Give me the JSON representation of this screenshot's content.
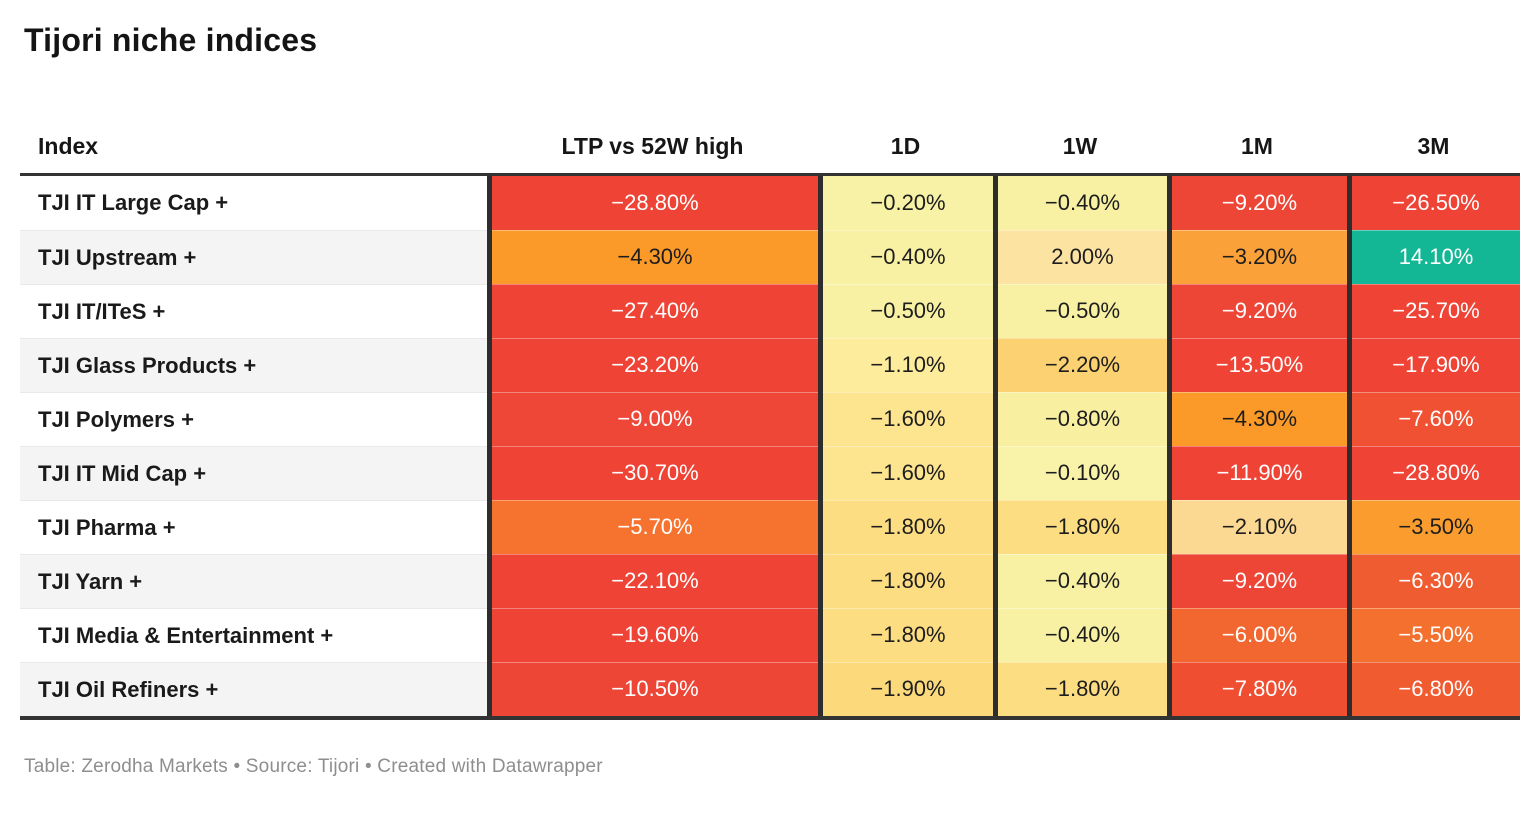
{
  "title": "Tijori niche indices",
  "footer": "Table: Zerodha Markets • Source: Tijori • Created with Datawrapper",
  "table": {
    "columns": [
      "Index",
      "LTP vs 52W high",
      "1D",
      "1W",
      "1M",
      "3M"
    ],
    "rows": [
      {
        "label": "TJI IT Large Cap +",
        "cells": [
          {
            "text": "−28.80%",
            "bg": "#ee4335",
            "fg": "#ffffff"
          },
          {
            "text": "−0.20%",
            "bg": "#f8f2a6",
            "fg": "#1d1d1d"
          },
          {
            "text": "−0.40%",
            "bg": "#f8f1a4",
            "fg": "#1d1d1d"
          },
          {
            "text": "−9.20%",
            "bg": "#ee4636",
            "fg": "#ffffff"
          },
          {
            "text": "−26.50%",
            "bg": "#ee4335",
            "fg": "#ffffff"
          }
        ]
      },
      {
        "label": "TJI Upstream +",
        "cells": [
          {
            "text": "−4.30%",
            "bg": "#fb9a28",
            "fg": "#1d1d1d"
          },
          {
            "text": "−0.40%",
            "bg": "#f8f1a4",
            "fg": "#1d1d1d"
          },
          {
            "text": "2.00%",
            "bg": "#fce3a2",
            "fg": "#1d1d1d"
          },
          {
            "text": "−3.20%",
            "bg": "#fba13a",
            "fg": "#1d1d1d"
          },
          {
            "text": "14.10%",
            "bg": "#14b795",
            "fg": "#ffffff"
          }
        ]
      },
      {
        "label": "TJI IT/ITeS +",
        "cells": [
          {
            "text": "−27.40%",
            "bg": "#ee4335",
            "fg": "#ffffff"
          },
          {
            "text": "−0.50%",
            "bg": "#f8f1a4",
            "fg": "#1d1d1d"
          },
          {
            "text": "−0.50%",
            "bg": "#f8f1a4",
            "fg": "#1d1d1d"
          },
          {
            "text": "−9.20%",
            "bg": "#ee4636",
            "fg": "#ffffff"
          },
          {
            "text": "−25.70%",
            "bg": "#ee4335",
            "fg": "#ffffff"
          }
        ]
      },
      {
        "label": "TJI Glass Products +",
        "cells": [
          {
            "text": "−23.20%",
            "bg": "#ee4335",
            "fg": "#ffffff"
          },
          {
            "text": "−1.10%",
            "bg": "#fdec9b",
            "fg": "#1d1d1d"
          },
          {
            "text": "−2.20%",
            "bg": "#fbd172",
            "fg": "#1d1d1d"
          },
          {
            "text": "−13.50%",
            "bg": "#ee4335",
            "fg": "#ffffff"
          },
          {
            "text": "−17.90%",
            "bg": "#ee4335",
            "fg": "#ffffff"
          }
        ]
      },
      {
        "label": "TJI Polymers +",
        "cells": [
          {
            "text": "−9.00%",
            "bg": "#ee4737",
            "fg": "#ffffff"
          },
          {
            "text": "−1.60%",
            "bg": "#fde48f",
            "fg": "#1d1d1d"
          },
          {
            "text": "−0.80%",
            "bg": "#f9efa0",
            "fg": "#1d1d1d"
          },
          {
            "text": "−4.30%",
            "bg": "#fb9a28",
            "fg": "#1d1d1d"
          },
          {
            "text": "−7.60%",
            "bg": "#f05132",
            "fg": "#ffffff"
          }
        ]
      },
      {
        "label": "TJI IT Mid Cap +",
        "cells": [
          {
            "text": "−30.70%",
            "bg": "#ee4335",
            "fg": "#ffffff"
          },
          {
            "text": "−1.60%",
            "bg": "#fde48f",
            "fg": "#1d1d1d"
          },
          {
            "text": "−0.10%",
            "bg": "#f9f3aa",
            "fg": "#1d1d1d"
          },
          {
            "text": "−11.90%",
            "bg": "#ee4335",
            "fg": "#ffffff"
          },
          {
            "text": "−28.80%",
            "bg": "#ee4335",
            "fg": "#ffffff"
          }
        ]
      },
      {
        "label": "TJI Pharma +",
        "cells": [
          {
            "text": "−5.70%",
            "bg": "#f6732f",
            "fg": "#ffffff"
          },
          {
            "text": "−1.80%",
            "bg": "#fcdd82",
            "fg": "#1d1d1d"
          },
          {
            "text": "−1.80%",
            "bg": "#fcdd82",
            "fg": "#1d1d1d"
          },
          {
            "text": "−2.10%",
            "bg": "#fbd993",
            "fg": "#1d1d1d"
          },
          {
            "text": "−3.50%",
            "bg": "#fa9d2e",
            "fg": "#1d1d1d"
          }
        ]
      },
      {
        "label": "TJI Yarn +",
        "cells": [
          {
            "text": "−22.10%",
            "bg": "#ee4335",
            "fg": "#ffffff"
          },
          {
            "text": "−1.80%",
            "bg": "#fcdd82",
            "fg": "#1d1d1d"
          },
          {
            "text": "−0.40%",
            "bg": "#f8f1a4",
            "fg": "#1d1d1d"
          },
          {
            "text": "−9.20%",
            "bg": "#ee4636",
            "fg": "#ffffff"
          },
          {
            "text": "−6.30%",
            "bg": "#f05c31",
            "fg": "#ffffff"
          }
        ]
      },
      {
        "label": "TJI Media & Entertainment +",
        "cells": [
          {
            "text": "−19.60%",
            "bg": "#ee4335",
            "fg": "#ffffff"
          },
          {
            "text": "−1.80%",
            "bg": "#fcdd82",
            "fg": "#1d1d1d"
          },
          {
            "text": "−0.40%",
            "bg": "#f8f1a4",
            "fg": "#1d1d1d"
          },
          {
            "text": "−6.00%",
            "bg": "#f2662f",
            "fg": "#ffffff"
          },
          {
            "text": "−5.50%",
            "bg": "#f4702e",
            "fg": "#ffffff"
          }
        ]
      },
      {
        "label": "TJI Oil Refiners +",
        "cells": [
          {
            "text": "−10.50%",
            "bg": "#ee4636",
            "fg": "#ffffff"
          },
          {
            "text": "−1.90%",
            "bg": "#fcda7c",
            "fg": "#1d1d1d"
          },
          {
            "text": "−1.80%",
            "bg": "#fcdd82",
            "fg": "#1d1d1d"
          },
          {
            "text": "−7.80%",
            "bg": "#f04e31",
            "fg": "#ffffff"
          },
          {
            "text": "−6.80%",
            "bg": "#f15b30",
            "fg": "#ffffff"
          }
        ]
      }
    ]
  },
  "colors": {
    "strong_negative": "#ee4335",
    "orange": "#fb9a28",
    "pale_yellow": "#f8f1a4",
    "positive_teal": "#14b795",
    "border_dark": "#333333",
    "zebra_gray": "#f4f4f4",
    "footer_gray": "#8e8e8e"
  },
  "chart_data": {
    "type": "table",
    "title": "Tijori niche indices",
    "columns": [
      "Index",
      "LTP vs 52W high",
      "1D",
      "1W",
      "1M",
      "3M"
    ],
    "unit": "%",
    "color_scale": "diverging red-yellow-green heatmap",
    "rows": [
      {
        "index": "TJI IT Large Cap +",
        "values": [
          -28.8,
          -0.2,
          -0.4,
          -9.2,
          -26.5
        ]
      },
      {
        "index": "TJI Upstream +",
        "values": [
          -4.3,
          -0.4,
          2.0,
          -3.2,
          14.1
        ]
      },
      {
        "index": "TJI IT/ITeS +",
        "values": [
          -27.4,
          -0.5,
          -0.5,
          -9.2,
          -25.7
        ]
      },
      {
        "index": "TJI Glass Products +",
        "values": [
          -23.2,
          -1.1,
          -2.2,
          -13.5,
          -17.9
        ]
      },
      {
        "index": "TJI Polymers +",
        "values": [
          -9.0,
          -1.6,
          -0.8,
          -4.3,
          -7.6
        ]
      },
      {
        "index": "TJI IT Mid Cap +",
        "values": [
          -30.7,
          -1.6,
          -0.1,
          -11.9,
          -28.8
        ]
      },
      {
        "index": "TJI Pharma +",
        "values": [
          -5.7,
          -1.8,
          -1.8,
          -2.1,
          -3.5
        ]
      },
      {
        "index": "TJI Yarn +",
        "values": [
          -22.1,
          -1.8,
          -0.4,
          -9.2,
          -6.3
        ]
      },
      {
        "index": "TJI Media & Entertainment +",
        "values": [
          -19.6,
          -1.8,
          -0.4,
          -6.0,
          -5.5
        ]
      },
      {
        "index": "TJI Oil Refiners +",
        "values": [
          -10.5,
          -1.9,
          -1.8,
          -7.8,
          -6.8
        ]
      }
    ],
    "footer": "Table: Zerodha Markets • Source: Tijori • Created with Datawrapper"
  }
}
